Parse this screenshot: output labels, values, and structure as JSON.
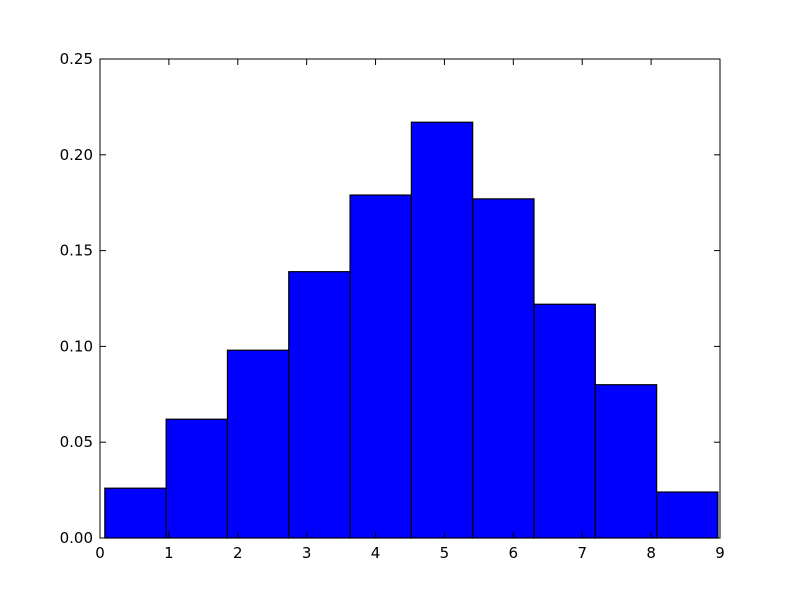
{
  "chart_data": {
    "type": "bar",
    "subtype": "histogram",
    "bins": [
      {
        "x0": 0.07,
        "x1": 0.96,
        "value": 0.026
      },
      {
        "x0": 0.96,
        "x1": 1.85,
        "value": 0.062
      },
      {
        "x0": 1.85,
        "x1": 2.74,
        "value": 0.098
      },
      {
        "x0": 2.74,
        "x1": 3.63,
        "value": 0.139
      },
      {
        "x0": 3.63,
        "x1": 4.52,
        "value": 0.179
      },
      {
        "x0": 4.52,
        "x1": 5.41,
        "value": 0.217
      },
      {
        "x0": 5.41,
        "x1": 6.3,
        "value": 0.177
      },
      {
        "x0": 6.3,
        "x1": 7.19,
        "value": 0.122
      },
      {
        "x0": 7.19,
        "x1": 8.08,
        "value": 0.08
      },
      {
        "x0": 8.08,
        "x1": 8.97,
        "value": 0.024
      }
    ],
    "title": "",
    "xlabel": "",
    "ylabel": "",
    "xlim": [
      0,
      9
    ],
    "ylim": [
      0,
      0.25
    ],
    "xticks": [
      "0",
      "1",
      "2",
      "3",
      "4",
      "5",
      "6",
      "7",
      "8",
      "9"
    ],
    "yticks": [
      "0.00",
      "0.05",
      "0.10",
      "0.15",
      "0.20",
      "0.25"
    ],
    "grid": false,
    "legend": "none",
    "colors": {
      "bar": "#0000ff",
      "edge": "#000000"
    }
  }
}
